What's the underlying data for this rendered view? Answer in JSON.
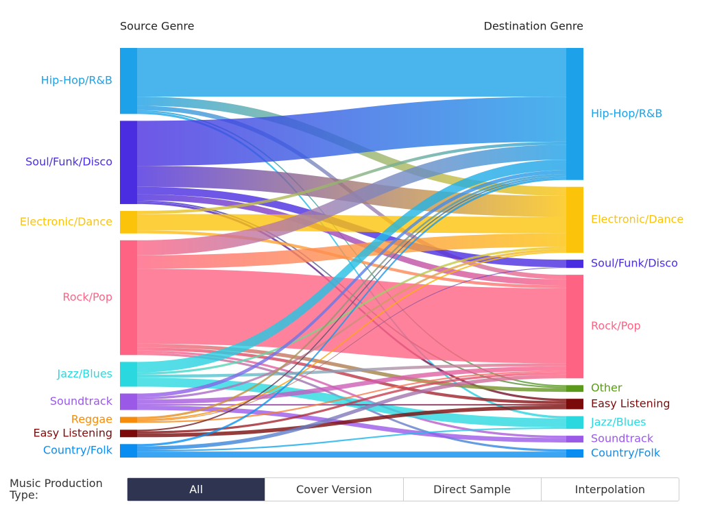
{
  "chart_data": {
    "type": "sankey",
    "source_title": "Source Genre",
    "target_title": "Destination Genre",
    "sources": [
      {
        "name": "Hip-Hop/R&B",
        "color": "#1da1e8",
        "value": 88
      },
      {
        "name": "Soul/Funk/Disco",
        "color": "#4a2de0",
        "value": 111
      },
      {
        "name": "Electronic/Dance",
        "color": "#fcc30b",
        "value": 30
      },
      {
        "name": "Rock/Pop",
        "color": "#ff6384",
        "value": 153
      },
      {
        "name": "Jazz/Blues",
        "color": "#2ad9e0",
        "value": 33
      },
      {
        "name": "Soundtrack",
        "color": "#9b59e8",
        "value": 22
      },
      {
        "name": "Reggae",
        "color": "#f78c0c",
        "value": 8
      },
      {
        "name": "Easy Listening",
        "color": "#7b0b0b",
        "value": 10
      },
      {
        "name": "Country/Folk",
        "color": "#0a8df0",
        "value": 18
      }
    ],
    "targets": [
      {
        "name": "Hip-Hop/R&B",
        "color": "#1da1e8",
        "value": 176
      },
      {
        "name": "Electronic/Dance",
        "color": "#fcc30b",
        "value": 88
      },
      {
        "name": "Soul/Funk/Disco",
        "color": "#4a2de0",
        "value": 11
      },
      {
        "name": "Rock/Pop",
        "color": "#ff6384",
        "value": 138
      },
      {
        "name": "Other",
        "color": "#5a9a1a",
        "value": 9
      },
      {
        "name": "Easy Listening",
        "color": "#7b0b0b",
        "value": 14
      },
      {
        "name": "Jazz/Blues",
        "color": "#2ad9e0",
        "value": 17
      },
      {
        "name": "Soundtrack",
        "color": "#9b59e8",
        "value": 9
      },
      {
        "name": "Country/Folk",
        "color": "#0a8df0",
        "value": 11
      }
    ],
    "links": [
      {
        "source": 0,
        "target": 0,
        "value": 65
      },
      {
        "source": 0,
        "target": 1,
        "value": 12
      },
      {
        "source": 0,
        "target": 3,
        "value": 6
      },
      {
        "source": 0,
        "target": 6,
        "value": 3
      },
      {
        "source": 0,
        "target": 4,
        "value": 2
      },
      {
        "source": 1,
        "target": 0,
        "value": 60
      },
      {
        "source": 1,
        "target": 1,
        "value": 28
      },
      {
        "source": 1,
        "target": 2,
        "value": 10
      },
      {
        "source": 1,
        "target": 3,
        "value": 8
      },
      {
        "source": 1,
        "target": 5,
        "value": 3
      },
      {
        "source": 1,
        "target": 4,
        "value": 2
      },
      {
        "source": 2,
        "target": 1,
        "value": 22
      },
      {
        "source": 2,
        "target": 0,
        "value": 4
      },
      {
        "source": 2,
        "target": 3,
        "value": 4
      },
      {
        "source": 3,
        "target": 3,
        "value": 100
      },
      {
        "source": 3,
        "target": 0,
        "value": 20
      },
      {
        "source": 3,
        "target": 1,
        "value": 18
      },
      {
        "source": 3,
        "target": 4,
        "value": 5
      },
      {
        "source": 3,
        "target": 5,
        "value": 4
      },
      {
        "source": 3,
        "target": 7,
        "value": 3
      },
      {
        "source": 3,
        "target": 8,
        "value": 3
      },
      {
        "source": 4,
        "target": 0,
        "value": 14
      },
      {
        "source": 4,
        "target": 6,
        "value": 12
      },
      {
        "source": 4,
        "target": 3,
        "value": 4
      },
      {
        "source": 4,
        "target": 1,
        "value": 3
      },
      {
        "source": 5,
        "target": 7,
        "value": 6
      },
      {
        "source": 5,
        "target": 3,
        "value": 6
      },
      {
        "source": 5,
        "target": 0,
        "value": 5
      },
      {
        "source": 5,
        "target": 1,
        "value": 3
      },
      {
        "source": 5,
        "target": 5,
        "value": 2
      },
      {
        "source": 6,
        "target": 0,
        "value": 3
      },
      {
        "source": 6,
        "target": 3,
        "value": 2
      },
      {
        "source": 6,
        "target": 1,
        "value": 2
      },
      {
        "source": 6,
        "target": 2,
        "value": 1
      },
      {
        "source": 7,
        "target": 5,
        "value": 5
      },
      {
        "source": 7,
        "target": 3,
        "value": 3
      },
      {
        "source": 7,
        "target": 0,
        "value": 2
      },
      {
        "source": 8,
        "target": 8,
        "value": 8
      },
      {
        "source": 8,
        "target": 3,
        "value": 5
      },
      {
        "source": 8,
        "target": 0,
        "value": 3
      },
      {
        "source": 8,
        "target": 6,
        "value": 2
      }
    ]
  },
  "controls": {
    "label": "Music Production Type:",
    "options": [
      "All",
      "Cover Version",
      "Direct Sample",
      "Interpolation"
    ],
    "selected": 0
  }
}
